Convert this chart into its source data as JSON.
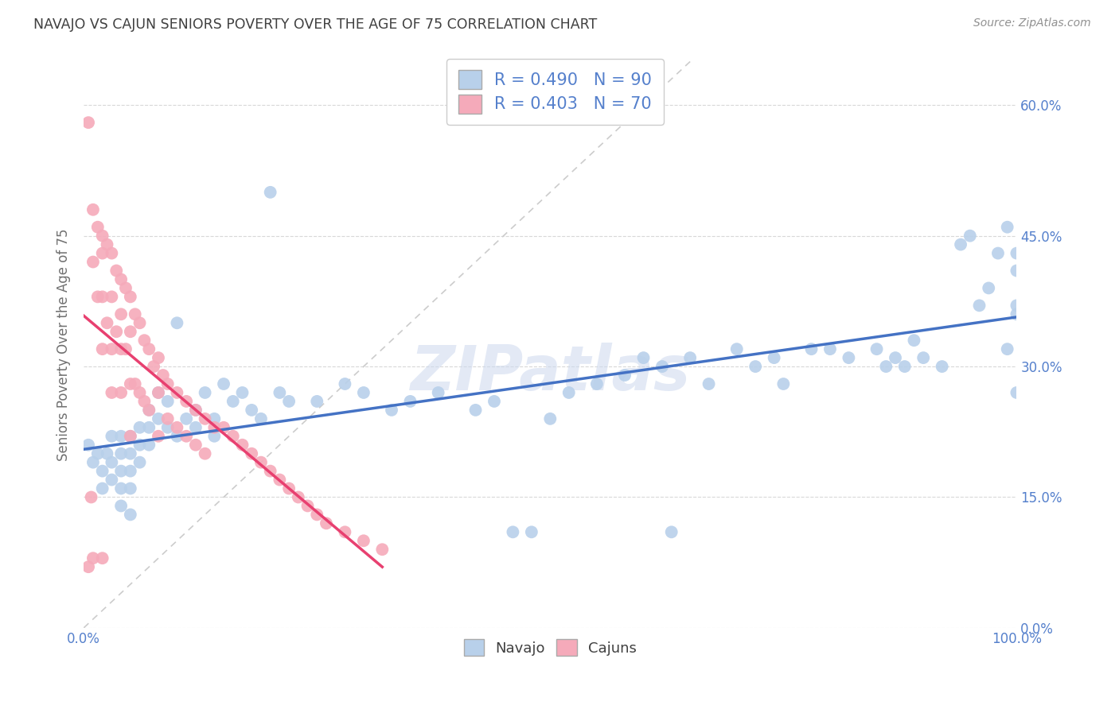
{
  "title": "NAVAJO VS CAJUN SENIORS POVERTY OVER THE AGE OF 75 CORRELATION CHART",
  "source": "Source: ZipAtlas.com",
  "ylabel": "Seniors Poverty Over the Age of 75",
  "navajo_R": 0.49,
  "navajo_N": 90,
  "cajun_R": 0.403,
  "cajun_N": 70,
  "navajo_color": "#b8d0ea",
  "cajun_color": "#f5aaba",
  "navajo_line_color": "#4472c4",
  "cajun_line_color": "#e84070",
  "diagonal_color": "#cccccc",
  "watermark": "ZIPatlas",
  "xlim": [
    0.0,
    1.0
  ],
  "ylim": [
    0.0,
    0.65
  ],
  "ytick_positions": [
    0.0,
    0.15,
    0.3,
    0.45,
    0.6
  ],
  "ytick_labels": [
    "0.0%",
    "15.0%",
    "30.0%",
    "45.0%",
    "60.0%"
  ],
  "xtick_positions": [
    0.0,
    0.1,
    0.2,
    0.3,
    0.4,
    0.5,
    0.6,
    0.7,
    0.8,
    0.9,
    1.0
  ],
  "xtick_labels_bottom": [
    "0.0%",
    "",
    "",
    "",
    "",
    "",
    "",
    "",
    "",
    "",
    "100.0%"
  ],
  "background_color": "#ffffff",
  "grid_color": "#d8d8d8",
  "title_color": "#404040",
  "axis_label_color": "#707070",
  "tick_color": "#5580cc",
  "legend_edge_color": "#cccccc",
  "navajo_x": [
    0.005,
    0.01,
    0.015,
    0.02,
    0.02,
    0.025,
    0.03,
    0.03,
    0.03,
    0.04,
    0.04,
    0.04,
    0.04,
    0.04,
    0.05,
    0.05,
    0.05,
    0.05,
    0.05,
    0.06,
    0.06,
    0.06,
    0.07,
    0.07,
    0.07,
    0.08,
    0.08,
    0.09,
    0.09,
    0.1,
    0.1,
    0.11,
    0.12,
    0.12,
    0.13,
    0.14,
    0.14,
    0.15,
    0.16,
    0.17,
    0.18,
    0.19,
    0.2,
    0.21,
    0.22,
    0.25,
    0.28,
    0.3,
    0.33,
    0.35,
    0.38,
    0.42,
    0.44,
    0.46,
    0.48,
    0.5,
    0.52,
    0.55,
    0.58,
    0.6,
    0.62,
    0.63,
    0.65,
    0.67,
    0.7,
    0.72,
    0.74,
    0.75,
    0.78,
    0.8,
    0.82,
    0.85,
    0.86,
    0.87,
    0.88,
    0.89,
    0.9,
    0.92,
    0.94,
    0.95,
    0.96,
    0.97,
    0.98,
    0.99,
    0.99,
    1.0,
    1.0,
    1.0,
    1.0,
    1.0
  ],
  "navajo_y": [
    0.21,
    0.19,
    0.2,
    0.18,
    0.16,
    0.2,
    0.22,
    0.19,
    0.17,
    0.22,
    0.2,
    0.18,
    0.16,
    0.14,
    0.22,
    0.2,
    0.18,
    0.16,
    0.13,
    0.23,
    0.21,
    0.19,
    0.25,
    0.23,
    0.21,
    0.27,
    0.24,
    0.26,
    0.23,
    0.35,
    0.22,
    0.24,
    0.25,
    0.23,
    0.27,
    0.24,
    0.22,
    0.28,
    0.26,
    0.27,
    0.25,
    0.24,
    0.5,
    0.27,
    0.26,
    0.26,
    0.28,
    0.27,
    0.25,
    0.26,
    0.27,
    0.25,
    0.26,
    0.11,
    0.11,
    0.24,
    0.27,
    0.28,
    0.29,
    0.31,
    0.3,
    0.11,
    0.31,
    0.28,
    0.32,
    0.3,
    0.31,
    0.28,
    0.32,
    0.32,
    0.31,
    0.32,
    0.3,
    0.31,
    0.3,
    0.33,
    0.31,
    0.3,
    0.44,
    0.45,
    0.37,
    0.39,
    0.43,
    0.46,
    0.32,
    0.37,
    0.41,
    0.43,
    0.36,
    0.27
  ],
  "cajun_x": [
    0.005,
    0.005,
    0.008,
    0.01,
    0.01,
    0.01,
    0.015,
    0.015,
    0.02,
    0.02,
    0.02,
    0.02,
    0.02,
    0.025,
    0.025,
    0.03,
    0.03,
    0.03,
    0.03,
    0.035,
    0.035,
    0.04,
    0.04,
    0.04,
    0.04,
    0.045,
    0.045,
    0.05,
    0.05,
    0.05,
    0.05,
    0.055,
    0.055,
    0.06,
    0.06,
    0.065,
    0.065,
    0.07,
    0.07,
    0.075,
    0.08,
    0.08,
    0.08,
    0.085,
    0.09,
    0.09,
    0.1,
    0.1,
    0.11,
    0.11,
    0.12,
    0.12,
    0.13,
    0.13,
    0.14,
    0.15,
    0.16,
    0.17,
    0.18,
    0.19,
    0.2,
    0.21,
    0.22,
    0.23,
    0.24,
    0.25,
    0.26,
    0.28,
    0.3,
    0.32
  ],
  "cajun_y": [
    0.58,
    0.07,
    0.15,
    0.48,
    0.42,
    0.08,
    0.46,
    0.38,
    0.45,
    0.43,
    0.38,
    0.32,
    0.08,
    0.44,
    0.35,
    0.43,
    0.38,
    0.32,
    0.27,
    0.41,
    0.34,
    0.4,
    0.36,
    0.32,
    0.27,
    0.39,
    0.32,
    0.38,
    0.34,
    0.28,
    0.22,
    0.36,
    0.28,
    0.35,
    0.27,
    0.33,
    0.26,
    0.32,
    0.25,
    0.3,
    0.31,
    0.27,
    0.22,
    0.29,
    0.28,
    0.24,
    0.27,
    0.23,
    0.26,
    0.22,
    0.25,
    0.21,
    0.24,
    0.2,
    0.23,
    0.23,
    0.22,
    0.21,
    0.2,
    0.19,
    0.18,
    0.17,
    0.16,
    0.15,
    0.14,
    0.13,
    0.12,
    0.11,
    0.1,
    0.09
  ]
}
